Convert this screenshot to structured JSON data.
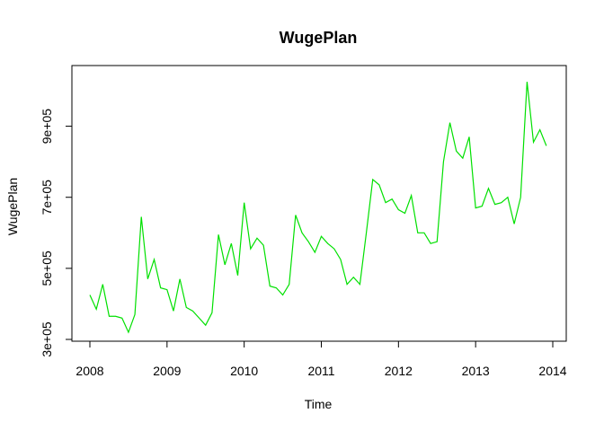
{
  "chart_data": {
    "type": "line",
    "title": "WugePlan",
    "xlabel": "Time",
    "ylabel": "WugePlan",
    "xlim": [
      2008,
      2014
    ],
    "ylim": [
      300000,
      1000000
    ],
    "x_ticks": [
      2008,
      2009,
      2010,
      2011,
      2012,
      2013,
      2014
    ],
    "x_tick_labels": [
      "2008",
      "2009",
      "2010",
      "2011",
      "2012",
      "2013",
      "2014"
    ],
    "y_ticks": [
      300000,
      500000,
      700000,
      900000
    ],
    "y_tick_labels": [
      "3e+05",
      "5e+05",
      "7e+05",
      "9e+05"
    ],
    "grid": false,
    "line_color": "#00e000",
    "series": [
      {
        "start": 2008,
        "frequency": 12,
        "values": [
          425000,
          385000,
          455000,
          365000,
          365000,
          360000,
          320000,
          370000,
          645000,
          470000,
          525000,
          445000,
          440000,
          380000,
          470000,
          390000,
          380000,
          360000,
          340000,
          375000,
          595000,
          510000,
          570000,
          480000,
          685000,
          555000,
          585000,
          565000,
          450000,
          445000,
          425000,
          455000,
          650000,
          600000,
          575000,
          545000,
          590000,
          570000,
          555000,
          525000,
          455000,
          475000,
          455000,
          600000,
          750000,
          735000,
          685000,
          695000,
          665000,
          655000,
          705000,
          600000,
          600000,
          570000,
          575000,
          800000,
          910000,
          830000,
          810000,
          870000,
          670000,
          675000,
          725000,
          680000,
          685000,
          700000,
          625000,
          700000,
          1025000,
          855000,
          890000,
          845000
        ]
      }
    ]
  }
}
